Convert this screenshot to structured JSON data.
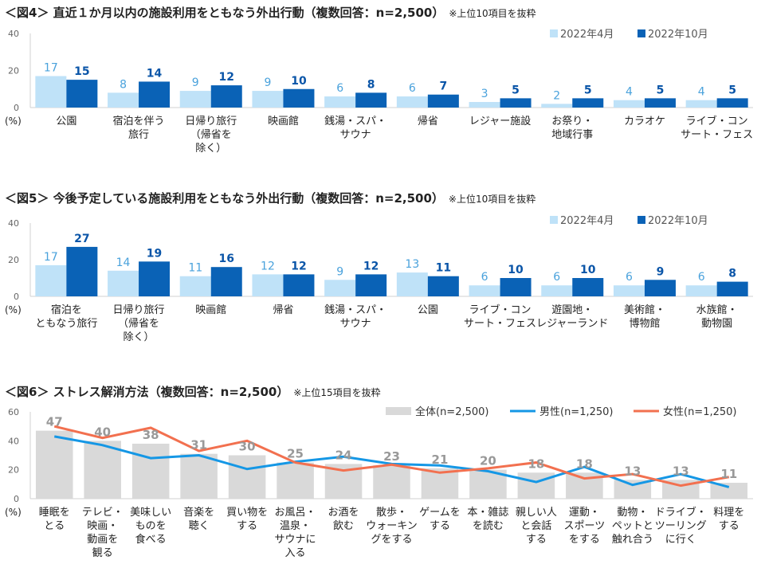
{
  "chart_data": [
    {
      "type": "bar",
      "title": "＜図4＞ 直近１か月以内の施設利用をともなう外出行動（複数回答：n=2,500）",
      "note": "※上位10項目を抜粋",
      "ylabel": "(%)",
      "ylim": [
        0,
        40
      ],
      "yticks": [
        0,
        20,
        40
      ],
      "legend": "top-right",
      "grid": false,
      "categories": [
        "公園",
        "宿泊を伴う\n旅行",
        "日帰り旅行\n（帰省を\n除く）",
        "映画館",
        "銭湯・スパ・\nサウナ",
        "帰省",
        "レジャー施設",
        "お祭り・\n地域行事",
        "カラオケ",
        "ライブ・コン\nサート・フェス"
      ],
      "series": [
        {
          "name": "2022年4月",
          "values": [
            17,
            8,
            9,
            9,
            6,
            6,
            3,
            2,
            4,
            4
          ],
          "color": "#bfe2f8"
        },
        {
          "name": "2022年10月",
          "values": [
            15,
            14,
            12,
            10,
            8,
            7,
            5,
            5,
            5,
            5
          ],
          "color": "#0a62b6"
        }
      ]
    },
    {
      "type": "bar",
      "title": "＜図5＞ 今後予定している施設利用をともなう外出行動（複数回答：n=2,500）",
      "note": "※上位10項目を抜粋",
      "ylabel": "(%)",
      "ylim": [
        0,
        40
      ],
      "yticks": [
        0,
        20,
        40
      ],
      "legend": "top-right",
      "grid": false,
      "categories": [
        "宿泊を\nともなう旅行",
        "日帰り旅行\n（帰省を\n除く）",
        "映画館",
        "帰省",
        "銭湯・スパ・\nサウナ",
        "公園",
        "ライブ・コン\nサート・フェス",
        "遊園地・\nレジャーランド",
        "美術館・\n博物館",
        "水族館・\n動物園"
      ],
      "series": [
        {
          "name": "2022年4月",
          "values": [
            17,
            14,
            11,
            12,
            9,
            13,
            6,
            6,
            6,
            6
          ],
          "color": "#bfe2f8"
        },
        {
          "name": "2022年10月",
          "values": [
            27,
            19,
            16,
            12,
            12,
            11,
            10,
            10,
            9,
            8
          ],
          "color": "#0a62b6"
        }
      ]
    },
    {
      "type": "bar+line",
      "title": "＜図6＞ ストレス解消方法（複数回答：n=2,500）",
      "note": "※上位15項目を抜粋",
      "ylabel": "(%)",
      "ylim": [
        0,
        60
      ],
      "yticks": [
        0,
        20,
        40,
        60
      ],
      "legend": "top-right",
      "grid": false,
      "categories": [
        "睡眠を\nとる",
        "テレビ・\n映画・\n動画を\n観る",
        "美味しい\nものを\n食べる",
        "音楽を\n聴く",
        "買い物を\nする",
        "お風呂・\n温泉・\nサウナに\n入る",
        "お酒を\n飲む",
        "散歩・\nウォーキン\nグをする",
        "ゲームを\nする",
        "本・雑誌\nを読む",
        "親しい人\nと会話\nする",
        "運動・\nスポーツ\nをする",
        "動物・\nペットと\n触れ合う",
        "ドライブ・\nツーリング\nに行く",
        "料理を\nする"
      ],
      "series": [
        {
          "name": "全体(n=2,500)",
          "kind": "bar",
          "values": [
            47,
            40,
            38,
            31,
            30,
            25,
            24,
            23,
            21,
            20,
            18,
            18,
            13,
            13,
            11
          ],
          "color": "#d9d9d9"
        },
        {
          "name": "男性(n=1,250)",
          "kind": "line",
          "values": [
            43,
            37,
            28,
            30,
            20.5,
            25.5,
            29,
            24,
            23,
            19,
            11.5,
            22,
            9.5,
            17,
            8
          ],
          "color": "#1597e5"
        },
        {
          "name": "女性(n=1,250)",
          "kind": "line",
          "values": [
            50,
            42,
            49,
            33,
            40,
            25,
            19.5,
            23.5,
            18,
            21,
            25,
            14,
            17,
            9,
            15
          ],
          "color": "#f2704f"
        }
      ]
    }
  ]
}
